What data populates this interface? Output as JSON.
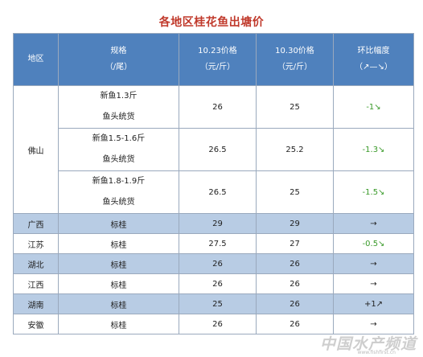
{
  "title": "各地区桂花鱼出塘价",
  "headers": {
    "region": "地区",
    "spec": "规格",
    "spec_unit": "（/尾）",
    "price_1023": "10.23价格",
    "price_1030": "10.30价格",
    "unit": "（元/斤）",
    "change": "环比幅度",
    "change_legend": "（↗—↘）"
  },
  "foshan": {
    "region": "佛山",
    "rows": [
      {
        "spec_a": "新鱼1.3斤",
        "spec_b": "鱼头统货",
        "p1": "26",
        "p2": "25",
        "change": "-1↘"
      },
      {
        "spec_a": "新鱼1.5-1.6斤",
        "spec_b": "鱼头统货",
        "p1": "26.5",
        "p2": "25.2",
        "change": "-1.3↘"
      },
      {
        "spec_a": "新鱼1.8-1.9斤",
        "spec_b": "鱼头统货",
        "p1": "26.5",
        "p2": "25",
        "change": "-1.5↘"
      }
    ]
  },
  "rows": [
    {
      "region": "广西",
      "spec": "标桂",
      "p1": "29",
      "p2": "29",
      "change": "→"
    },
    {
      "region": "江苏",
      "spec": "标桂",
      "p1": "27.5",
      "p2": "27",
      "change": "-0.5↘"
    },
    {
      "region": "湖北",
      "spec": "标桂",
      "p1": "26",
      "p2": "26",
      "change": "→"
    },
    {
      "region": "江西",
      "spec": "标桂",
      "p1": "26",
      "p2": "26",
      "change": "→"
    },
    {
      "region": "湖南",
      "spec": "标桂",
      "p1": "25",
      "p2": "26",
      "change": "+1↗"
    },
    {
      "region": "安徽",
      "spec": "标桂",
      "p1": "26",
      "p2": "26",
      "change": "→"
    }
  ],
  "colors": {
    "header_bg": "#4f81bd",
    "shade_bg": "#b8cce4",
    "title": "#c0392b",
    "down": "#3a9a2a"
  },
  "watermark": "中国水产频道",
  "watermark_url": "www.fishfirst.cn"
}
